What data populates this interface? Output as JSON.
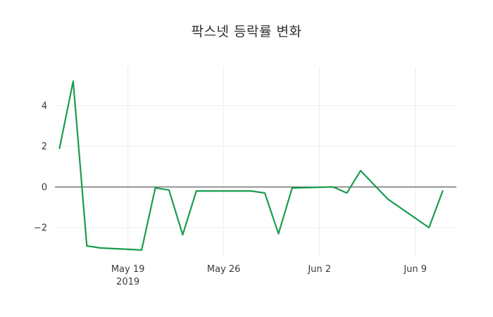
{
  "page": {
    "background": "#ffffff"
  },
  "chart_data": {
    "type": "line",
    "title": "팍스넷 등락률 변화",
    "xlabel": "",
    "ylabel": "",
    "xlim": [
      "2019-05-13T16:00:00Z",
      "2019-06-12T00:00:00Z"
    ],
    "ylim": [
      -3.45,
      5.9
    ],
    "grid": true,
    "zero_line": true,
    "legend": "none",
    "series": [
      {
        "name": "등락률",
        "color": "#1a9c4f",
        "x": [
          "2019-05-14",
          "2019-05-15",
          "2019-05-16",
          "2019-05-17",
          "2019-05-20",
          "2019-05-21",
          "2019-05-22",
          "2019-05-23",
          "2019-05-24",
          "2019-05-27",
          "2019-05-28",
          "2019-05-29",
          "2019-05-30",
          "2019-05-31",
          "2019-06-03",
          "2019-06-04",
          "2019-06-05",
          "2019-06-07",
          "2019-06-10",
          "2019-06-11"
        ],
        "values": [
          1.9,
          5.2,
          -2.9,
          -3.0,
          -3.1,
          -0.05,
          -0.15,
          -2.35,
          -0.2,
          -0.2,
          -0.2,
          -0.3,
          -2.3,
          -0.05,
          0.0,
          -0.3,
          0.8,
          -0.6,
          -2.0,
          -0.2
        ]
      }
    ],
    "x_ticks": [
      {
        "value": "2019-05-19",
        "label": "May 19",
        "sublabel": "2019"
      },
      {
        "value": "2019-05-26",
        "label": "May 26",
        "sublabel": ""
      },
      {
        "value": "2019-06-02",
        "label": "Jun 2",
        "sublabel": ""
      },
      {
        "value": "2019-06-09",
        "label": "Jun 9",
        "sublabel": ""
      }
    ],
    "y_ticks": [
      {
        "value": -2,
        "label": "−2"
      },
      {
        "value": 0,
        "label": "0"
      },
      {
        "value": 2,
        "label": "2"
      },
      {
        "value": 4,
        "label": "4"
      }
    ],
    "colors": {
      "line": "#1a9c4f",
      "grid": "#ebebeb",
      "zero_line": "#3c3c3c",
      "text": "#3b3b3b",
      "title": "#2f2f2f"
    }
  }
}
